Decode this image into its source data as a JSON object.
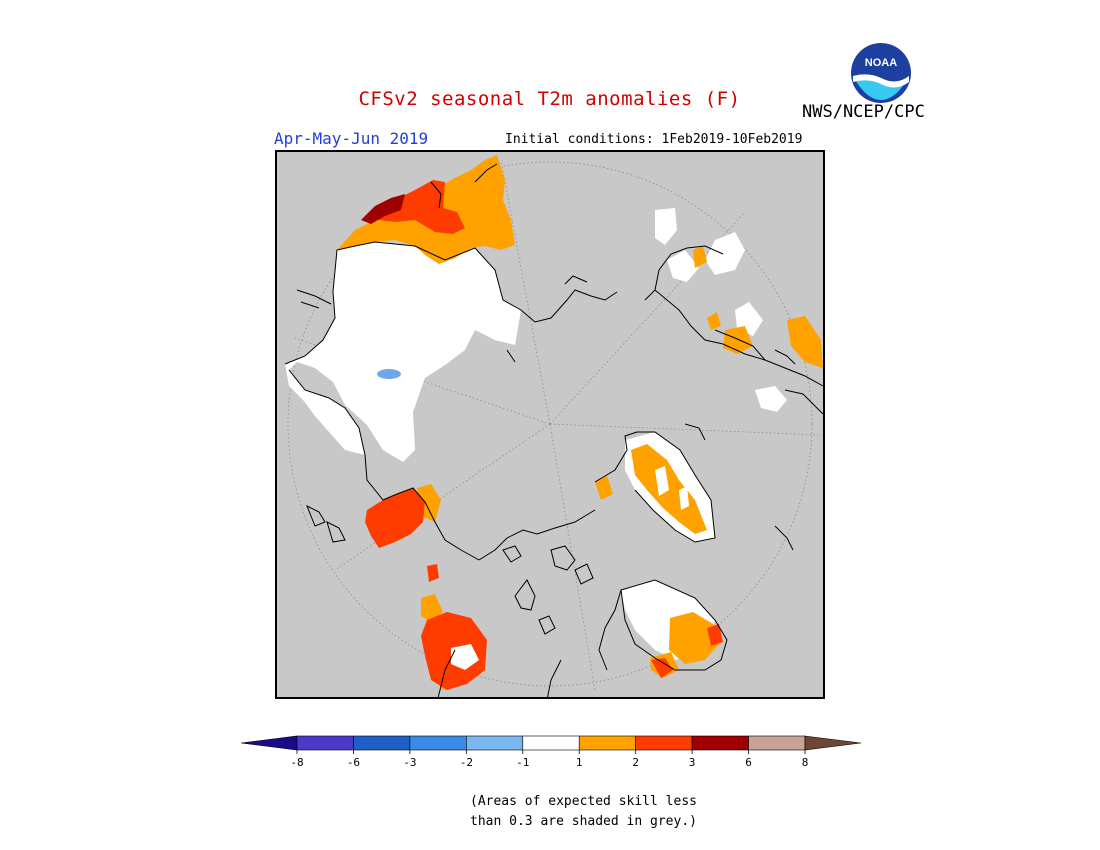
{
  "title": "CFSv2 seasonal T2m anomalies (F)",
  "agency": "NWS/NCEP/CPC",
  "logo_text": "NOAA",
  "season": "Apr-May-Jun 2019",
  "initial_conditions": "Initial conditions: 1Feb2019-10Feb2019",
  "note_line1": "(Areas of expected skill less",
  "note_line2": "than 0.3 are shaded in grey.)",
  "colorbar": {
    "bins": [
      {
        "color": "#1a0a8c"
      },
      {
        "color": "#4b39c9"
      },
      {
        "color": "#1f5fc8"
      },
      {
        "color": "#3a8ae6"
      },
      {
        "color": "#7ab6f0"
      },
      {
        "color": "#ffffff"
      },
      {
        "color": "#ffa200"
      },
      {
        "color": "#ff3c00"
      },
      {
        "color": "#a10000"
      },
      {
        "color": "#c9a296"
      },
      {
        "color": "#6e4633"
      }
    ],
    "tick_labels": [
      "-8",
      "-6",
      "-3",
      "-2",
      "-1",
      "1",
      "2",
      "3",
      "6",
      "8"
    ]
  },
  "colors": {
    "background_grey": "#c8c8c8",
    "land_outline": "#000000",
    "warm_light": "#ffa200",
    "warm_medium": "#ff3c00",
    "warm_dark": "#a10000",
    "near_normal": "#ffffff",
    "lake": "#6fa8e8"
  }
}
